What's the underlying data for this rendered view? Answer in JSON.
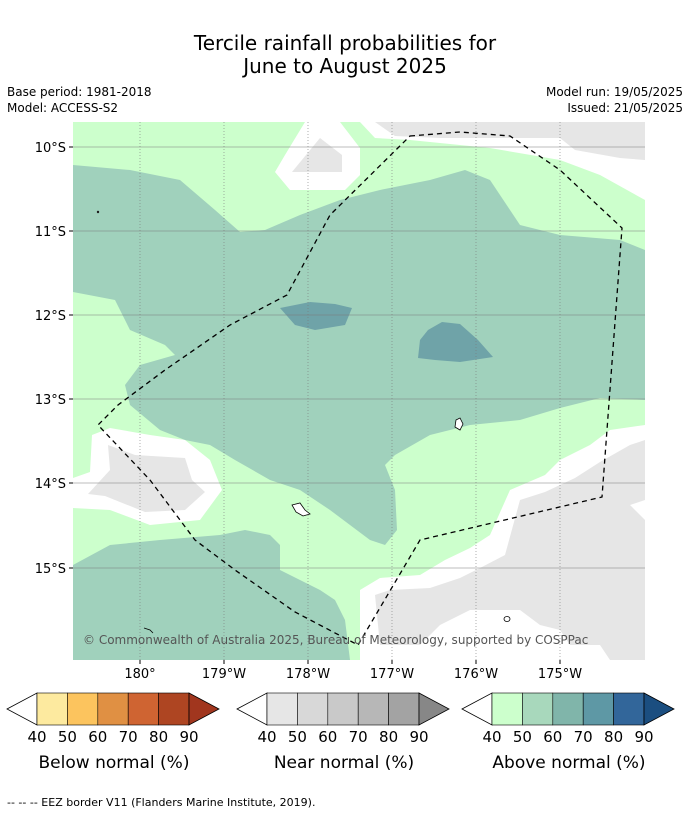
{
  "title": {
    "line1": "Tercile rainfall probabilities for",
    "line2": "June to August 2025"
  },
  "meta": {
    "base_period": "Base period: 1981-2018",
    "model": "Model: ACCESS-S2",
    "model_run": "Model run: 19/05/2025",
    "issued": "Issued: 21/05/2025"
  },
  "map": {
    "lat_labels": [
      "10°S",
      "11°S",
      "12°S",
      "13°S",
      "14°S",
      "15°S"
    ],
    "lon_labels": [
      "180°",
      "179°W",
      "178°W",
      "177°W",
      "176°W",
      "175°W"
    ],
    "copyright": "© Commonwealth of Australia 2025, Bureau of Meteorology, supported by COSPPac",
    "colors": {
      "near_normal_40": "#e6e6e6",
      "above_40": "#ccffcc",
      "above_50": "#a0d1bc",
      "above_60": "#6fa3a8",
      "land": "#ffffff"
    }
  },
  "colorbars": [
    {
      "label": "Below normal (%)",
      "ticks": [
        "40",
        "50",
        "60",
        "70",
        "80",
        "90"
      ],
      "colors": [
        "#ffffff",
        "#fdea9f",
        "#fcc45e",
        "#e09043",
        "#cf6432",
        "#ae4522",
        "#a1361e"
      ]
    },
    {
      "label": "Near normal (%)",
      "ticks": [
        "40",
        "50",
        "60",
        "70",
        "80",
        "90"
      ],
      "colors": [
        "#ffffff",
        "#e6e6e6",
        "#d8d8d8",
        "#c9c9c9",
        "#b7b7b7",
        "#a3a3a3",
        "#878787"
      ]
    },
    {
      "label": "Above normal (%)",
      "ticks": [
        "40",
        "50",
        "60",
        "70",
        "80",
        "90"
      ],
      "colors": [
        "#ffffff",
        "#ccffcc",
        "#a8d8bc",
        "#80b5aa",
        "#5e98a5",
        "#32669a",
        "#1b4e80"
      ]
    }
  ],
  "footnote": "--  --  -- EEZ border V11 (Flanders Marine Institute, 2019)."
}
